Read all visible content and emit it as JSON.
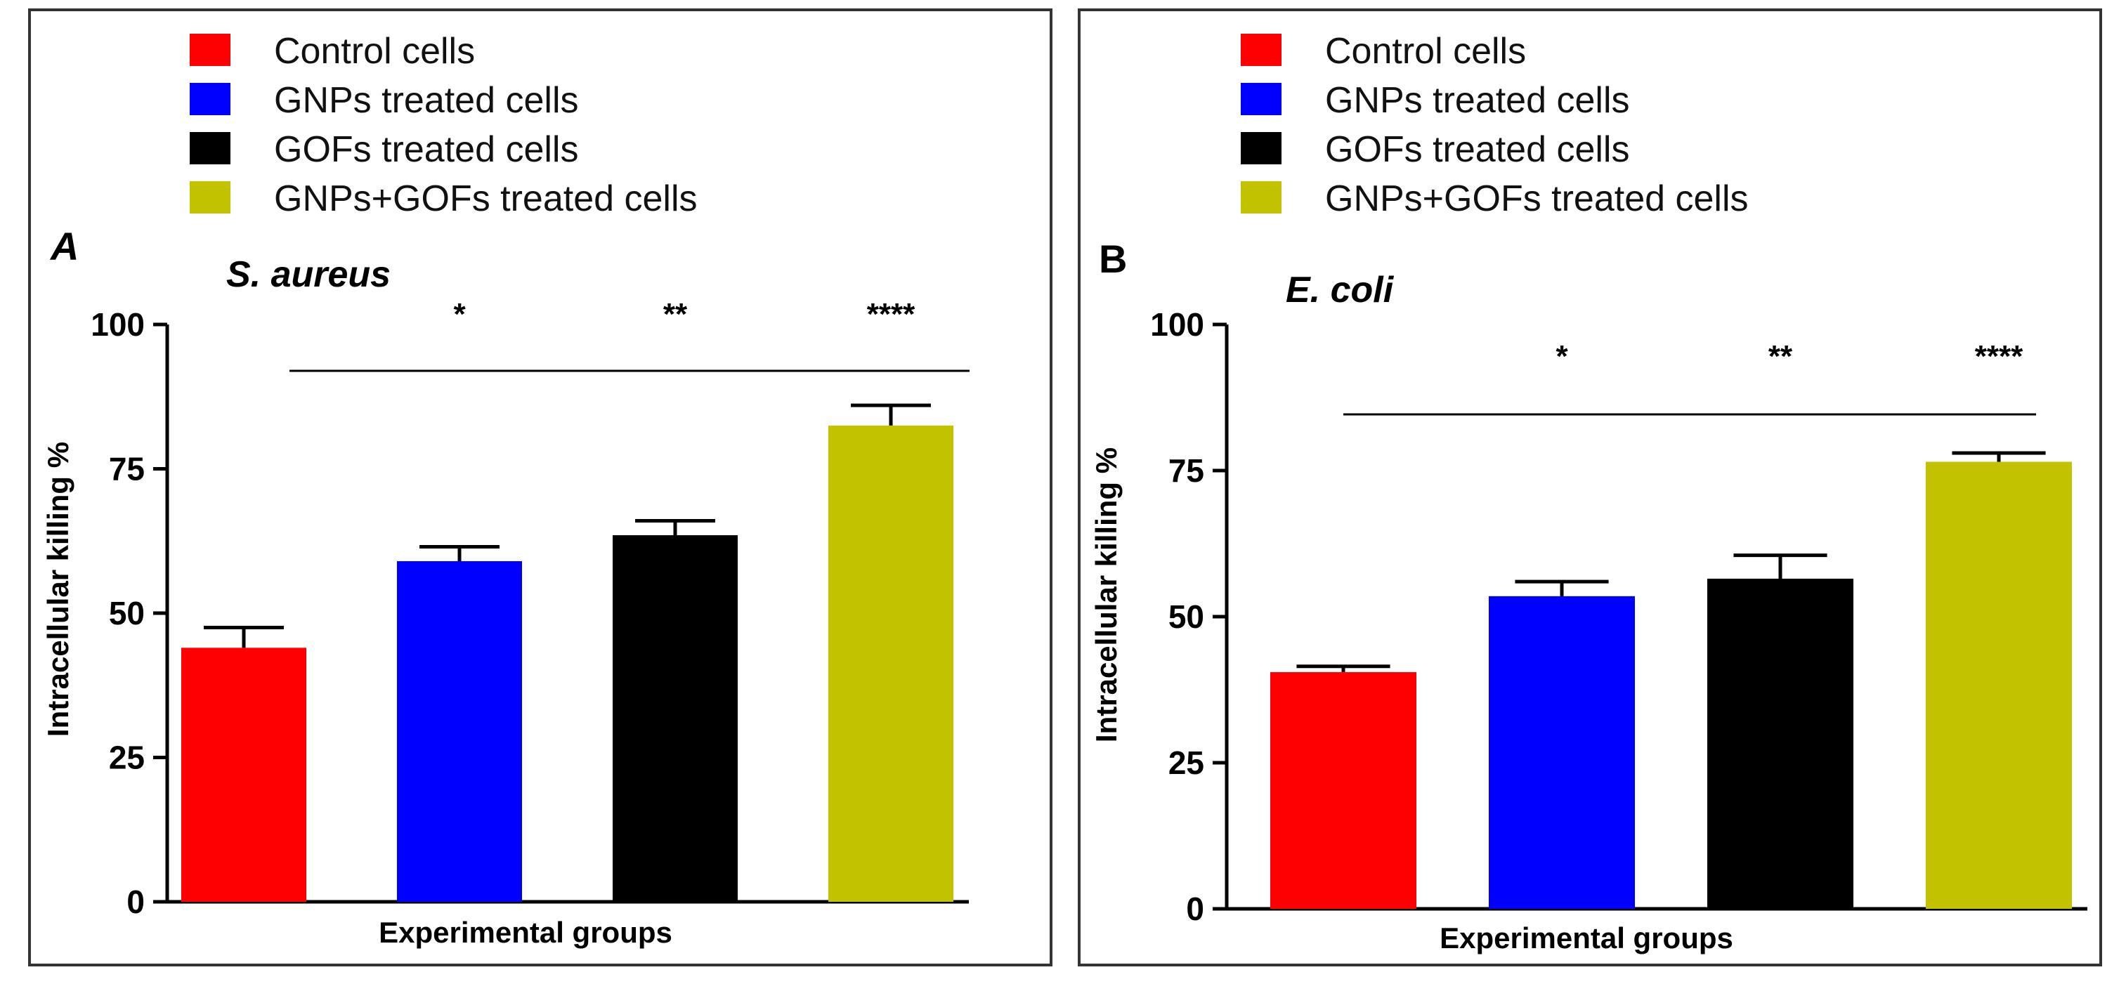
{
  "chart_data": [
    {
      "type": "bar",
      "panel_label": "A",
      "title": "S. aureus",
      "xlabel": "Experimental groups",
      "ylabel": "Intracellular killing %",
      "ylim": [
        0,
        100
      ],
      "yticks": [
        "0",
        "25",
        "50",
        "75",
        "100"
      ],
      "categories": [
        "Control cells",
        "GNPs treated cells",
        "GOFs treated cells",
        "GNPs+GOFs treated cells"
      ],
      "values": [
        44,
        59,
        63.5,
        82.5
      ],
      "errors": [
        3.5,
        2.5,
        2.5,
        3.5
      ],
      "significance": [
        "",
        "*",
        "**",
        "****"
      ],
      "legend": [
        {
          "label": "Control cells",
          "color": "#ff0000"
        },
        {
          "label": "GNPs treated cells",
          "color": "#0000ff"
        },
        {
          "label": "GOFs treated cells",
          "color": "#000000"
        },
        {
          "label": "GNPs+GOFs treated cells",
          "color": "#c2c200"
        }
      ]
    },
    {
      "type": "bar",
      "panel_label": "B",
      "title": "E. coli",
      "xlabel": "Experimental groups",
      "ylabel": "Intracellular killing %",
      "ylim": [
        0,
        100
      ],
      "yticks": [
        "0",
        "25",
        "50",
        "75",
        "100"
      ],
      "categories": [
        "Control cells",
        "GNPs treated cells",
        "GOFs treated cells",
        "GNPs+GOFs treated cells"
      ],
      "values": [
        40.5,
        53.5,
        56.5,
        76.5
      ],
      "errors": [
        1.0,
        2.5,
        4.0,
        1.5
      ],
      "significance": [
        "",
        "*",
        "**",
        "****"
      ],
      "legend": [
        {
          "label": "Control cells",
          "color": "#ff0000"
        },
        {
          "label": "GNPs treated cells",
          "color": "#0000ff"
        },
        {
          "label": "GOFs treated cells",
          "color": "#000000"
        },
        {
          "label": "GNPs+GOFs treated cells",
          "color": "#c2c200"
        }
      ]
    }
  ]
}
